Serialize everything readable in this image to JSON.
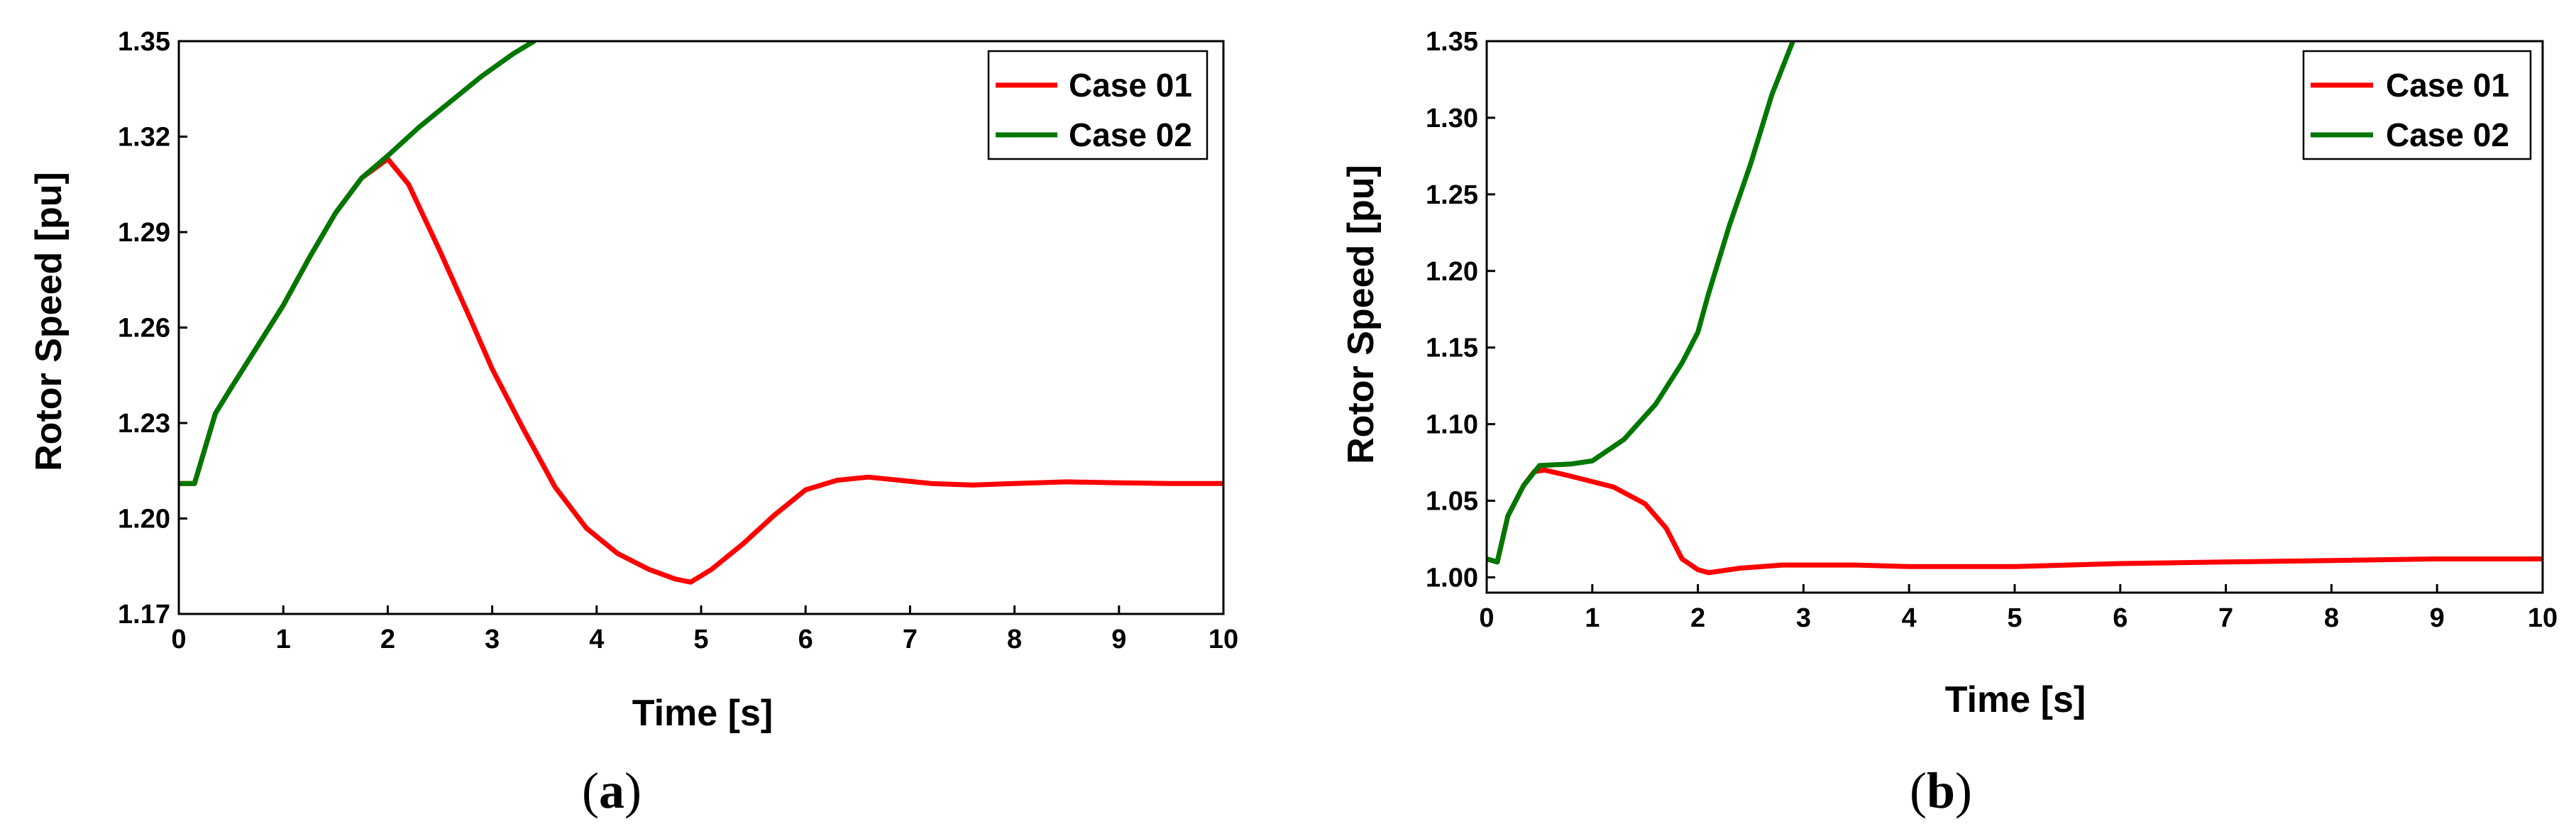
{
  "chart_data": [
    {
      "type": "line",
      "panel": "a",
      "caption_letter": "a",
      "xlabel": "Time [s]",
      "ylabel": "Rotor Speed [pu]",
      "xlim": [
        0,
        10
      ],
      "ylim": [
        1.17,
        1.35
      ],
      "xticks": [
        0,
        1,
        2,
        3,
        4,
        5,
        6,
        7,
        8,
        9,
        10
      ],
      "xtick_labels": [
        "0",
        "1",
        "2",
        "3",
        "4",
        "5",
        "6",
        "7",
        "8",
        "9",
        "10"
      ],
      "yticks": [
        1.17,
        1.2,
        1.23,
        1.26,
        1.29,
        1.32,
        1.35
      ],
      "ytick_labels": [
        "1.17",
        "1.20",
        "1.23",
        "1.26",
        "1.29",
        "1.32",
        "1.35"
      ],
      "legend_position": "top-right",
      "series": [
        {
          "name": "Case 01",
          "color": "#ff0000",
          "points": [
            [
              0,
              1.211
            ],
            [
              0.15,
              1.211
            ],
            [
              0.25,
              1.222
            ],
            [
              0.35,
              1.233
            ],
            [
              0.5,
              1.241
            ],
            [
              0.75,
              1.254
            ],
            [
              1.0,
              1.267
            ],
            [
              1.25,
              1.282
            ],
            [
              1.5,
              1.296
            ],
            [
              1.75,
              1.307
            ],
            [
              2.0,
              1.313
            ],
            [
              2.2,
              1.305
            ],
            [
              2.5,
              1.284
            ],
            [
              2.8,
              1.262
            ],
            [
              3.0,
              1.247
            ],
            [
              3.3,
              1.228
            ],
            [
              3.6,
              1.21
            ],
            [
              3.9,
              1.197
            ],
            [
              4.2,
              1.189
            ],
            [
              4.5,
              1.184
            ],
            [
              4.75,
              1.181
            ],
            [
              4.9,
              1.18
            ],
            [
              5.1,
              1.184
            ],
            [
              5.4,
              1.192
            ],
            [
              5.7,
              1.201
            ],
            [
              6.0,
              1.209
            ],
            [
              6.3,
              1.212
            ],
            [
              6.6,
              1.213
            ],
            [
              6.9,
              1.212
            ],
            [
              7.2,
              1.211
            ],
            [
              7.6,
              1.2105
            ],
            [
              8.0,
              1.211
            ],
            [
              8.5,
              1.2115
            ],
            [
              9.0,
              1.2112
            ],
            [
              9.5,
              1.211
            ],
            [
              10.0,
              1.211
            ]
          ]
        },
        {
          "name": "Case 02",
          "color": "#007700",
          "points": [
            [
              0,
              1.211
            ],
            [
              0.15,
              1.211
            ],
            [
              0.25,
              1.222
            ],
            [
              0.35,
              1.233
            ],
            [
              0.5,
              1.241
            ],
            [
              0.75,
              1.254
            ],
            [
              1.0,
              1.267
            ],
            [
              1.25,
              1.282
            ],
            [
              1.5,
              1.296
            ],
            [
              1.75,
              1.307
            ],
            [
              2.0,
              1.314
            ],
            [
              2.3,
              1.323
            ],
            [
              2.6,
              1.331
            ],
            [
              2.9,
              1.339
            ],
            [
              3.2,
              1.346
            ],
            [
              3.4,
              1.35
            ]
          ]
        }
      ]
    },
    {
      "type": "line",
      "panel": "b",
      "caption_letter": "b",
      "xlabel": "Time [s]",
      "ylabel": "Rotor Speed [pu]",
      "xlim": [
        0,
        10
      ],
      "ylim": [
        0.99,
        1.35
      ],
      "xticks": [
        0,
        1,
        2,
        3,
        4,
        5,
        6,
        7,
        8,
        9,
        10
      ],
      "xtick_labels": [
        "0",
        "1",
        "2",
        "3",
        "4",
        "5",
        "6",
        "7",
        "8",
        "9",
        "10"
      ],
      "yticks": [
        1.0,
        1.05,
        1.1,
        1.15,
        1.2,
        1.25,
        1.3,
        1.35
      ],
      "ytick_labels": [
        "1.00",
        "1.05",
        "1.10",
        "1.15",
        "1.20",
        "1.25",
        "1.30",
        "1.35"
      ],
      "legend_position": "top-right",
      "series": [
        {
          "name": "Case 01",
          "color": "#ff0000",
          "points": [
            [
              0,
              1.012
            ],
            [
              0.1,
              1.01
            ],
            [
              0.2,
              1.04
            ],
            [
              0.35,
              1.06
            ],
            [
              0.45,
              1.069
            ],
            [
              0.55,
              1.07
            ],
            [
              0.8,
              1.066
            ],
            [
              1.2,
              1.059
            ],
            [
              1.5,
              1.048
            ],
            [
              1.7,
              1.032
            ],
            [
              1.85,
              1.012
            ],
            [
              2.0,
              1.005
            ],
            [
              2.1,
              1.003
            ],
            [
              2.4,
              1.006
            ],
            [
              2.8,
              1.008
            ],
            [
              3.5,
              1.008
            ],
            [
              4.0,
              1.007
            ],
            [
              4.5,
              1.007
            ],
            [
              5.0,
              1.007
            ],
            [
              5.5,
              1.008
            ],
            [
              6.0,
              1.009
            ],
            [
              7.0,
              1.01
            ],
            [
              8.0,
              1.011
            ],
            [
              9.0,
              1.012
            ],
            [
              10.0,
              1.012
            ]
          ]
        },
        {
          "name": "Case 02",
          "color": "#007700",
          "points": [
            [
              0,
              1.012
            ],
            [
              0.1,
              1.01
            ],
            [
              0.2,
              1.04
            ],
            [
              0.35,
              1.06
            ],
            [
              0.5,
              1.073
            ],
            [
              0.8,
              1.074
            ],
            [
              1.0,
              1.076
            ],
            [
              1.3,
              1.09
            ],
            [
              1.6,
              1.113
            ],
            [
              1.85,
              1.14
            ],
            [
              2.0,
              1.16
            ],
            [
              2.1,
              1.185
            ],
            [
              2.3,
              1.23
            ],
            [
              2.5,
              1.27
            ],
            [
              2.7,
              1.315
            ],
            [
              2.9,
              1.35
            ]
          ]
        }
      ]
    }
  ]
}
